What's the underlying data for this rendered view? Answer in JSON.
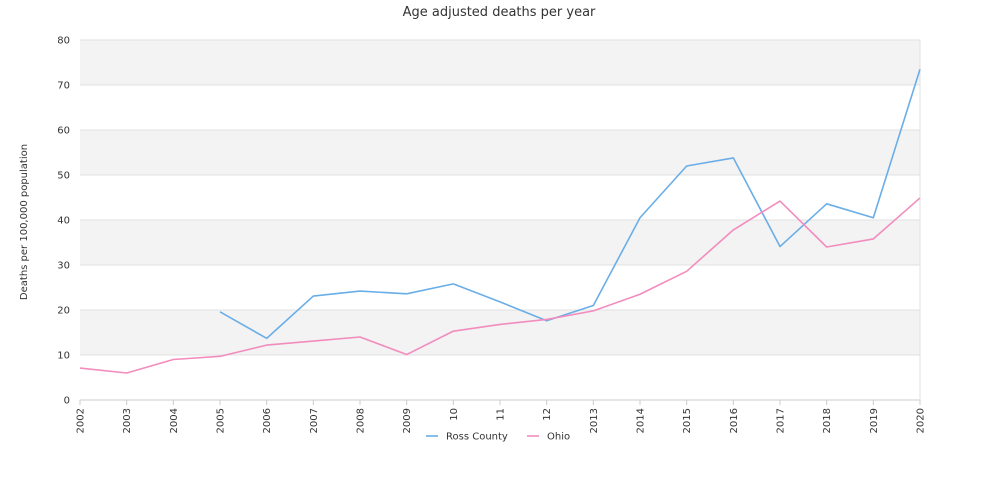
{
  "chart_data": {
    "type": "line",
    "title": "Age adjusted deaths per year",
    "xlabel": "",
    "ylabel": "Deaths per 100,000 population",
    "ylim": [
      0,
      80
    ],
    "yticks": [
      0,
      10,
      20,
      30,
      40,
      50,
      60,
      70,
      80
    ],
    "grid": "horizontal alternating bands",
    "legend_position": "bottom",
    "categories": [
      "2002",
      "2003",
      "2004",
      "2005",
      "2006",
      "2007",
      "2008",
      "2009",
      "10",
      "11",
      "12",
      "2013",
      "2014",
      "2015",
      "2016",
      "2017",
      "2018",
      "2019",
      "2020"
    ],
    "series": [
      {
        "name": "Ross County",
        "color": "#6aaee8",
        "values": [
          null,
          null,
          null,
          19.6,
          13.7,
          23.1,
          24.2,
          23.6,
          25.8,
          21.8,
          17.6,
          21.0,
          40.5,
          52.0,
          53.8,
          34.1,
          43.6,
          40.5,
          73.5
        ]
      },
      {
        "name": "Ohio",
        "color": "#f28cbd",
        "values": [
          7.1,
          6.0,
          9.0,
          9.7,
          12.2,
          13.1,
          14.0,
          10.1,
          15.3,
          16.8,
          17.9,
          19.8,
          23.5,
          28.6,
          37.8,
          44.2,
          34.0,
          35.8,
          44.9
        ]
      }
    ]
  }
}
